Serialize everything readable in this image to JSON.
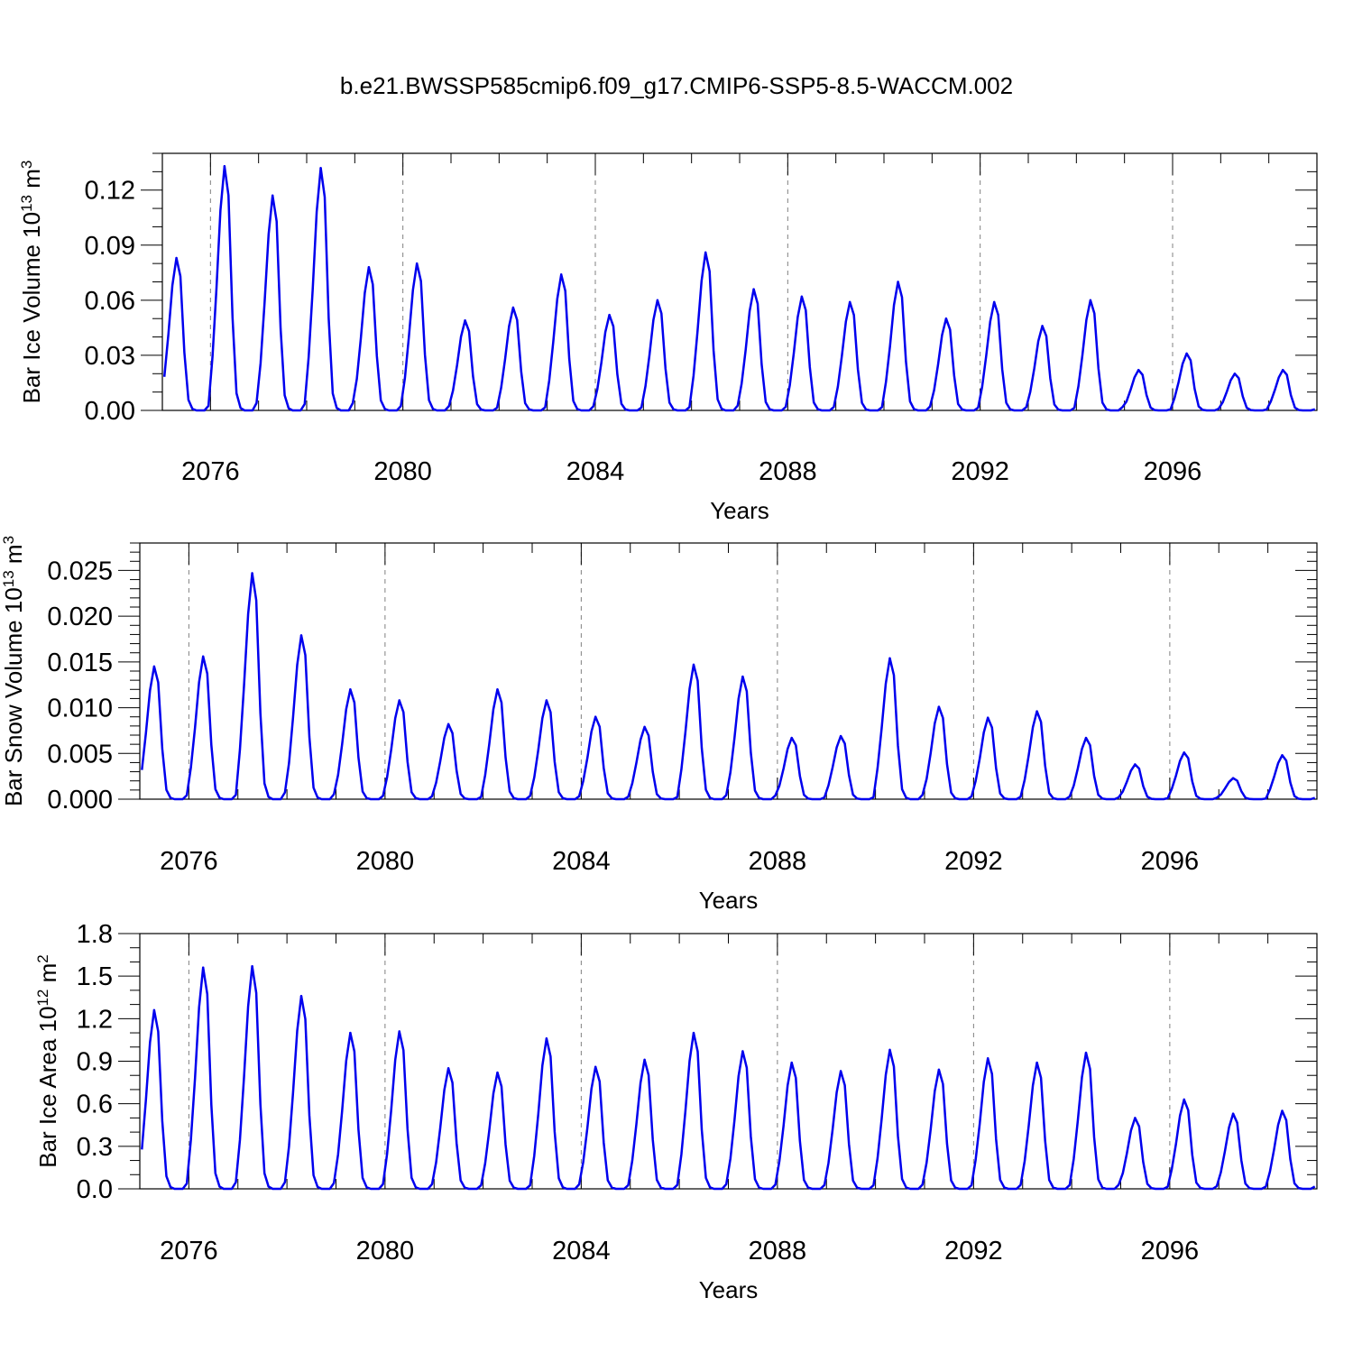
{
  "title": "b.e21.BWSSP585cmip6.f09_g17.CMIP6-SSP5-8.5-WACCM.002",
  "colors": {
    "line": "#0000ee",
    "axis": "#000000",
    "grid": "#808080"
  },
  "chart_data": [
    {
      "type": "line",
      "ylabel": {
        "prefix": "Bar Ice Volume 10",
        "exp": "13",
        "unit": " m",
        "unit_exp": "3"
      },
      "xlabel": "Years",
      "xlim": [
        2075.0,
        2099.0
      ],
      "ylim": [
        0.0,
        0.14
      ],
      "yticks": [
        0.0,
        0.03,
        0.06,
        0.09,
        0.12
      ],
      "ytick_labels": [
        "0.00",
        "0.03",
        "0.06",
        "0.09",
        "0.12"
      ],
      "yminor_step": 0.01,
      "xticks": [
        2076,
        2080,
        2084,
        2088,
        2092,
        2096
      ],
      "xtick_labels": [
        "2076",
        "2080",
        "2084",
        "2088",
        "2092",
        "2096"
      ],
      "xminor_step": 1,
      "grid_x": "dashed vertical at major x ticks",
      "peaks": [
        {
          "year": 2075,
          "peak": 0.083
        },
        {
          "year": 2076,
          "peak": 0.133
        },
        {
          "year": 2077,
          "peak": 0.117
        },
        {
          "year": 2078,
          "peak": 0.132
        },
        {
          "year": 2079,
          "peak": 0.078
        },
        {
          "year": 2080,
          "peak": 0.08
        },
        {
          "year": 2081,
          "peak": 0.049
        },
        {
          "year": 2082,
          "peak": 0.056
        },
        {
          "year": 2083,
          "peak": 0.074
        },
        {
          "year": 2084,
          "peak": 0.052
        },
        {
          "year": 2085,
          "peak": 0.06
        },
        {
          "year": 2086,
          "peak": 0.086
        },
        {
          "year": 2087,
          "peak": 0.066
        },
        {
          "year": 2088,
          "peak": 0.062
        },
        {
          "year": 2089,
          "peak": 0.059
        },
        {
          "year": 2090,
          "peak": 0.07
        },
        {
          "year": 2091,
          "peak": 0.05
        },
        {
          "year": 2092,
          "peak": 0.059
        },
        {
          "year": 2093,
          "peak": 0.046
        },
        {
          "year": 2094,
          "peak": 0.06
        },
        {
          "year": 2095,
          "peak": 0.022
        },
        {
          "year": 2096,
          "peak": 0.031
        },
        {
          "year": 2097,
          "peak": 0.02
        },
        {
          "year": 2098,
          "peak": 0.022
        }
      ]
    },
    {
      "type": "line",
      "ylabel": {
        "prefix": "Bar Snow Volume 10",
        "exp": "13",
        "unit": " m",
        "unit_exp": "3"
      },
      "xlabel": "Years",
      "xlim": [
        2075.0,
        2099.0
      ],
      "ylim": [
        0.0,
        0.028
      ],
      "yticks": [
        0.0,
        0.005,
        0.01,
        0.015,
        0.02,
        0.025
      ],
      "ytick_labels": [
        "0.000",
        "0.005",
        "0.010",
        "0.015",
        "0.020",
        "0.025"
      ],
      "yminor_step": 0.001,
      "xticks": [
        2076,
        2080,
        2084,
        2088,
        2092,
        2096
      ],
      "xtick_labels": [
        "2076",
        "2080",
        "2084",
        "2088",
        "2092",
        "2096"
      ],
      "xminor_step": 1,
      "grid_x": "dashed vertical at major x ticks",
      "peaks": [
        {
          "year": 2075,
          "peak": 0.0145
        },
        {
          "year": 2076,
          "peak": 0.0156
        },
        {
          "year": 2077,
          "peak": 0.0247
        },
        {
          "year": 2078,
          "peak": 0.0179
        },
        {
          "year": 2079,
          "peak": 0.012
        },
        {
          "year": 2080,
          "peak": 0.0108
        },
        {
          "year": 2081,
          "peak": 0.0082
        },
        {
          "year": 2082,
          "peak": 0.012
        },
        {
          "year": 2083,
          "peak": 0.0108
        },
        {
          "year": 2084,
          "peak": 0.009
        },
        {
          "year": 2085,
          "peak": 0.0079
        },
        {
          "year": 2086,
          "peak": 0.0147
        },
        {
          "year": 2087,
          "peak": 0.0134
        },
        {
          "year": 2088,
          "peak": 0.0067
        },
        {
          "year": 2089,
          "peak": 0.0069
        },
        {
          "year": 2090,
          "peak": 0.0154
        },
        {
          "year": 2091,
          "peak": 0.0101
        },
        {
          "year": 2092,
          "peak": 0.0089
        },
        {
          "year": 2093,
          "peak": 0.0096
        },
        {
          "year": 2094,
          "peak": 0.0067
        },
        {
          "year": 2095,
          "peak": 0.0038
        },
        {
          "year": 2096,
          "peak": 0.0051
        },
        {
          "year": 2097,
          "peak": 0.0023
        },
        {
          "year": 2098,
          "peak": 0.0048
        }
      ]
    },
    {
      "type": "line",
      "ylabel": {
        "prefix": "Bar Ice Area 10",
        "exp": "12",
        "unit": " m",
        "unit_exp": "2"
      },
      "xlabel": "Years",
      "xlim": [
        2075.0,
        2099.0
      ],
      "ylim": [
        0.0,
        1.8
      ],
      "yticks": [
        0.0,
        0.3,
        0.6,
        0.9,
        1.2,
        1.5,
        1.8
      ],
      "ytick_labels": [
        "0.0",
        "0.3",
        "0.6",
        "0.9",
        "1.2",
        "1.5",
        "1.8"
      ],
      "yminor_step": 0.1,
      "xticks": [
        2076,
        2080,
        2084,
        2088,
        2092,
        2096
      ],
      "xtick_labels": [
        "2076",
        "2080",
        "2084",
        "2088",
        "2092",
        "2096"
      ],
      "xminor_step": 1,
      "grid_x": "dashed vertical at major x ticks",
      "peaks": [
        {
          "year": 2075,
          "peak": 1.26
        },
        {
          "year": 2076,
          "peak": 1.56
        },
        {
          "year": 2077,
          "peak": 1.57
        },
        {
          "year": 2078,
          "peak": 1.36
        },
        {
          "year": 2079,
          "peak": 1.1
        },
        {
          "year": 2080,
          "peak": 1.11
        },
        {
          "year": 2081,
          "peak": 0.85
        },
        {
          "year": 2082,
          "peak": 0.82
        },
        {
          "year": 2083,
          "peak": 1.06
        },
        {
          "year": 2084,
          "peak": 0.86
        },
        {
          "year": 2085,
          "peak": 0.91
        },
        {
          "year": 2086,
          "peak": 1.1
        },
        {
          "year": 2087,
          "peak": 0.97
        },
        {
          "year": 2088,
          "peak": 0.89
        },
        {
          "year": 2089,
          "peak": 0.83
        },
        {
          "year": 2090,
          "peak": 0.98
        },
        {
          "year": 2091,
          "peak": 0.84
        },
        {
          "year": 2092,
          "peak": 0.92
        },
        {
          "year": 2093,
          "peak": 0.89
        },
        {
          "year": 2094,
          "peak": 0.96
        },
        {
          "year": 2095,
          "peak": 0.5
        },
        {
          "year": 2096,
          "peak": 0.63
        },
        {
          "year": 2097,
          "peak": 0.53
        },
        {
          "year": 2098,
          "peak": 0.55
        }
      ]
    }
  ]
}
